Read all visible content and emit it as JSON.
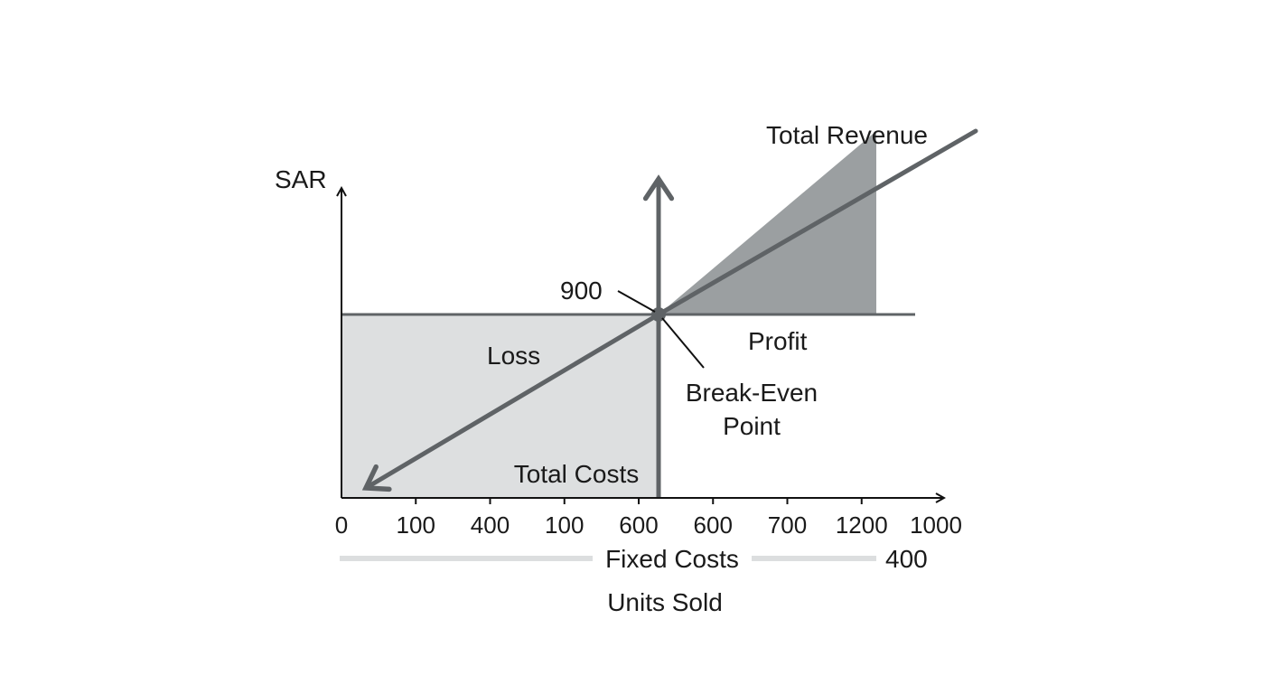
{
  "chart_data": {
    "type": "line",
    "title": "",
    "ylabel": "SAR",
    "xlabel": "Units Sold",
    "x_tick_labels": [
      "0",
      "100",
      "400",
      "100",
      "600",
      "600",
      "700",
      "1200",
      "1000"
    ],
    "series": [
      {
        "name": "Total Revenue",
        "points": [
          [
            0,
            0
          ],
          [
            600,
            900
          ],
          [
            1200,
            1800
          ]
        ]
      },
      {
        "name": "Total Costs",
        "points": [
          [
            0,
            900
          ],
          [
            1000,
            900
          ]
        ]
      }
    ],
    "break_even": {
      "x": 600,
      "y": 900,
      "value_label": "900"
    },
    "annotations": {
      "revenue_label": "Total Revenue",
      "costs_label": "Total Costs",
      "loss_label": "Loss",
      "profit_label": "Profit",
      "break_even_line1": "Break-Even",
      "break_even_line2": "Point",
      "fixed_costs_label": "Fixed Costs",
      "fixed_costs_value": "400"
    },
    "colors": {
      "line": "#5f6366",
      "axis": "#111111",
      "loss_fill": "#dddfe0",
      "profit_fill": "#9a9e a0",
      "profit_region": "#9b9fa1",
      "fixed_bar": "#dcdedf"
    },
    "grid": false
  }
}
